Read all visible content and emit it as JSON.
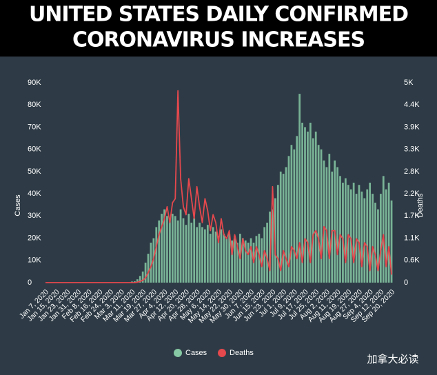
{
  "chart_data": {
    "type": "bar-line",
    "title": "UNITED STATES DAILY CONFIRMED",
    "subtitle": "CORONAVIRUS INCREASES",
    "y_label": "Cases",
    "y2_label": "Deaths",
    "watermark": "加拿大必读",
    "categories": [
      "Jan 7, 2020",
      null,
      null,
      null,
      "Jan 15, 2020",
      null,
      null,
      null,
      "Jan 23, 2020",
      null,
      null,
      null,
      "Jan 31, 2020",
      null,
      null,
      null,
      "Feb 8, 2020",
      null,
      null,
      null,
      "Feb 16, 2020",
      null,
      null,
      null,
      "Feb 24, 2020",
      null,
      null,
      null,
      "Mar 3, 2020",
      null,
      null,
      null,
      "Mar 11, 2020",
      null,
      null,
      null,
      "Mar 19, 2020",
      null,
      null,
      null,
      "Mar 27, 2020",
      null,
      null,
      null,
      "Apr 4, 2020",
      null,
      null,
      null,
      "Apr 12, 2020",
      null,
      null,
      null,
      "Apr 20, 2020",
      null,
      null,
      null,
      "Apr 28, 2020",
      null,
      null,
      null,
      "May 6, 2020",
      null,
      null,
      null,
      "May 14, 2020",
      null,
      null,
      null,
      "May 22, 2020",
      null,
      null,
      null,
      "May 30, 2020",
      null,
      null,
      null,
      "Jun 7, 2020",
      null,
      null,
      null,
      "Jun 15, 2020",
      null,
      null,
      null,
      "Jun 23, 2020",
      null,
      null,
      null,
      "Jul 1, 2020",
      null,
      null,
      null,
      "Jul 9, 2020",
      null,
      null,
      null,
      "Jul 17, 2020",
      null,
      null,
      null,
      "Jul 25, 2020",
      null,
      null,
      null,
      "Aug 2, 2020",
      null,
      null,
      null,
      "Aug 11, 2020",
      null,
      null,
      null,
      "Aug 19, 2020",
      null,
      null,
      null,
      "Aug 27, 2020",
      null,
      null,
      null,
      "Sep 4, 2020",
      null,
      null,
      null,
      "Sep 12, 2020",
      null,
      null,
      null,
      "Sep 20, 2020"
    ],
    "series": [
      {
        "name": "Cases",
        "color": "#86c9a4",
        "values": [
          0,
          0,
          0,
          0,
          0,
          0,
          0,
          0,
          0,
          0,
          0,
          0,
          0,
          0,
          0,
          0,
          0,
          0,
          0,
          0,
          0,
          0,
          0,
          0,
          0,
          0,
          0,
          0,
          0,
          0,
          0,
          0,
          500,
          600,
          1500,
          3000,
          5000,
          9000,
          13000,
          18000,
          20000,
          25000,
          28000,
          31000,
          33000,
          30000,
          29000,
          31000,
          30000,
          28000,
          33000,
          29000,
          26000,
          31000,
          27000,
          29000,
          25000,
          27000,
          25000,
          24000,
          26000,
          22000,
          25000,
          23000,
          21000,
          24000,
          22000,
          20000,
          22000,
          19000,
          21000,
          18000,
          22000,
          20000,
          19000,
          18000,
          20000,
          18000,
          21000,
          22000,
          20000,
          25000,
          27000,
          32000,
          33000,
          38000,
          44000,
          50000,
          49000,
          52000,
          57000,
          62000,
          60000,
          66000,
          85000,
          72000,
          70000,
          68000,
          72000,
          65000,
          68000,
          62000,
          60000,
          55000,
          52000,
          58000,
          50000,
          55000,
          52000,
          48000,
          45000,
          47000,
          44000,
          42000,
          45000,
          40000,
          44000,
          41000,
          38000,
          42000,
          45000,
          40000,
          36000,
          33000,
          40000,
          48000,
          42000,
          45000,
          37000
        ]
      },
      {
        "name": "Deaths",
        "color": "#e5484d",
        "axis": "y2",
        "values": [
          0,
          0,
          0,
          0,
          0,
          0,
          0,
          0,
          0,
          0,
          0,
          0,
          0,
          0,
          0,
          0,
          0,
          0,
          0,
          0,
          0,
          0,
          0,
          0,
          0,
          0,
          0,
          0,
          0,
          0,
          0,
          0,
          0,
          0,
          10,
          30,
          60,
          120,
          250,
          400,
          600,
          900,
          1200,
          1400,
          1600,
          1900,
          1500,
          2000,
          2100,
          4800,
          2600,
          1900,
          1700,
          2600,
          2100,
          1600,
          2400,
          1900,
          1500,
          2100,
          1800,
          1300,
          1700,
          1500,
          1000,
          1600,
          1200,
          1100,
          1300,
          700,
          1200,
          900,
          600,
          1100,
          800,
          700,
          900,
          500,
          900,
          700,
          400,
          800,
          600,
          300,
          2400,
          700,
          600,
          300,
          800,
          600,
          400,
          900,
          800,
          600,
          1000,
          500,
          1100,
          1000,
          500,
          1200,
          1300,
          1100,
          600,
          1400,
          1300,
          600,
          1300,
          1300,
          700,
          1200,
          1100,
          500,
          1200,
          1100,
          500,
          1100,
          1000,
          400,
          1000,
          900,
          300,
          900,
          700,
          300,
          800,
          1200,
          400,
          900,
          200
        ]
      }
    ],
    "ylim": [
      0,
      90000
    ],
    "yticks": [
      0,
      {
        "value": 10000,
        "label": "10K"
      },
      {
        "value": 20000,
        "label": "20K"
      },
      {
        "value": 30000,
        "label": "30K"
      },
      {
        "value": 40000,
        "label": "40K"
      },
      {
        "value": 50000,
        "label": "50K"
      },
      {
        "value": 60000,
        "label": "60K"
      },
      {
        "value": 70000,
        "label": "70K"
      },
      {
        "value": 80000,
        "label": "80K"
      },
      {
        "value": 90000,
        "label": "90K"
      }
    ],
    "y2lim": [
      0,
      5000
    ],
    "y2ticks": [
      0,
      {
        "value": 555.6,
        "label": "0.6K"
      },
      {
        "value": 1111.1,
        "label": "1.1K"
      },
      {
        "value": 1666.7,
        "label": "1.7K"
      },
      {
        "value": 2222.2,
        "label": "2.2K"
      },
      {
        "value": 2777.8,
        "label": "2.8K"
      },
      {
        "value": 3333.3,
        "label": "3.3K"
      },
      {
        "value": 3888.9,
        "label": "3.9K"
      },
      {
        "value": 4444.4,
        "label": "4.4K"
      },
      {
        "value": 5000,
        "label": "5K"
      }
    ],
    "legend": "bottom"
  }
}
